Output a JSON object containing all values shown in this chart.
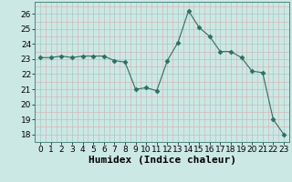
{
  "x": [
    0,
    1,
    2,
    3,
    4,
    5,
    6,
    7,
    8,
    9,
    10,
    11,
    12,
    13,
    14,
    15,
    16,
    17,
    18,
    19,
    20,
    21,
    22,
    23
  ],
  "y": [
    23.1,
    23.1,
    23.2,
    23.1,
    23.2,
    23.2,
    23.2,
    22.9,
    22.8,
    21.0,
    21.1,
    20.9,
    22.9,
    24.1,
    26.2,
    25.1,
    24.5,
    23.5,
    23.5,
    23.1,
    22.2,
    22.1,
    19.0,
    18.0
  ],
  "line_color": "#2d6e62",
  "marker": "D",
  "marker_size": 2.5,
  "bg_color": "#cce8e4",
  "grid_major_color": "#adc8c4",
  "grid_minor_color": "#d4b8b8",
  "xlabel": "Humidex (Indice chaleur)",
  "ylim": [
    17.5,
    26.8
  ],
  "xlim": [
    -0.5,
    23.5
  ],
  "yticks": [
    18,
    19,
    20,
    21,
    22,
    23,
    24,
    25,
    26
  ],
  "xticks": [
    0,
    1,
    2,
    3,
    4,
    5,
    6,
    7,
    8,
    9,
    10,
    11,
    12,
    13,
    14,
    15,
    16,
    17,
    18,
    19,
    20,
    21,
    22,
    23
  ],
  "tick_fontsize": 6.5,
  "xlabel_fontsize": 8
}
